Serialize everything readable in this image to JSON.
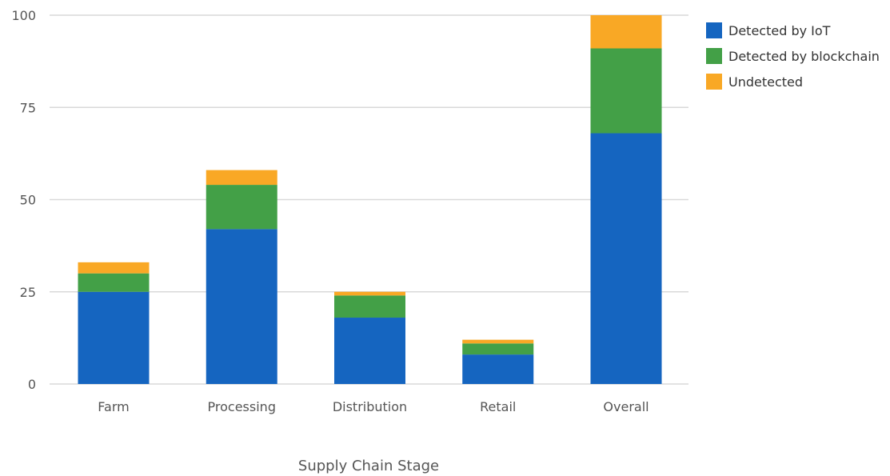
{
  "chart_data": {
    "type": "bar",
    "stacked": true,
    "title": "",
    "xlabel": "Supply Chain Stage",
    "ylabel": "",
    "categories": [
      "Farm",
      "Processing",
      "Distribution",
      "Retail",
      "Overall"
    ],
    "series": [
      {
        "name": "Detected by IoT",
        "color": "#1565c0",
        "values": [
          25,
          42,
          18,
          8,
          68
        ]
      },
      {
        "name": "Detected by blockchain",
        "color": "#43a047",
        "values": [
          5,
          12,
          6,
          3,
          23
        ]
      },
      {
        "name": "Undetected",
        "color": "#f9a825",
        "values": [
          3,
          4,
          1,
          1,
          9
        ]
      }
    ],
    "ylim": [
      0,
      100
    ],
    "yticks": [
      0,
      25,
      50,
      75,
      100
    ],
    "grid": true,
    "legend_position": "top-right"
  }
}
